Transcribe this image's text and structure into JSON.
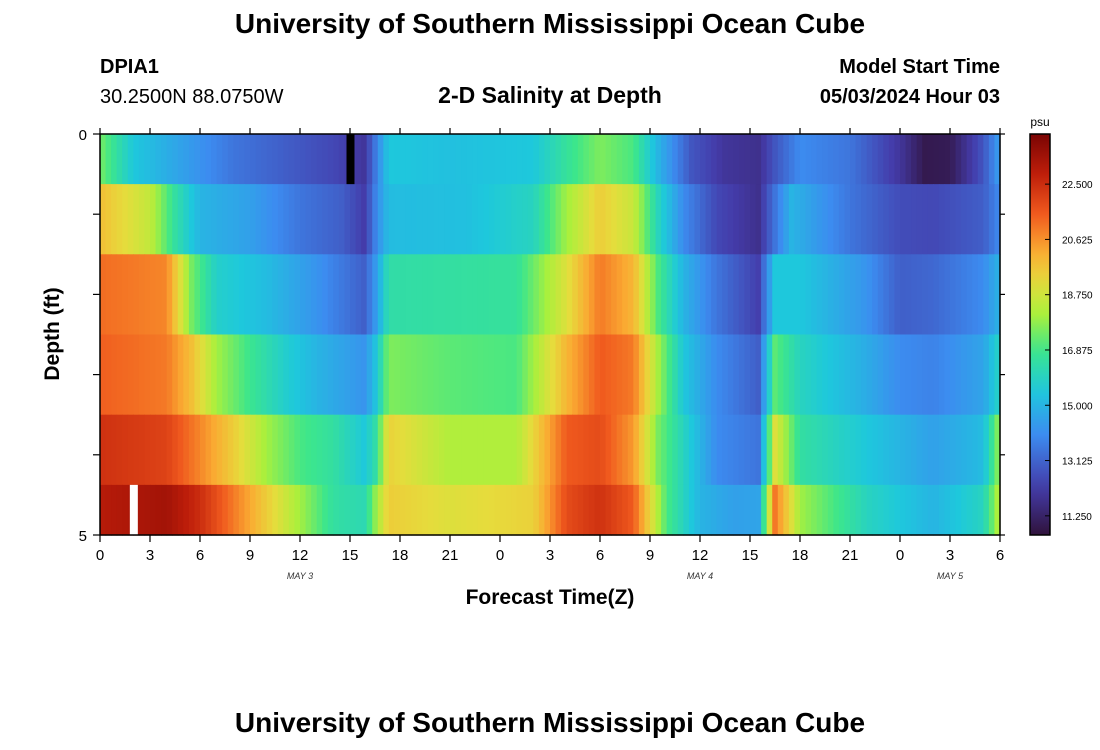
{
  "header": {
    "title": "University of Southern Mississippi Ocean Cube",
    "station_id": "DPIA1",
    "coordinates": "30.2500N  88.0750W",
    "subtitle": "2-D Salinity at Depth",
    "model_start_label": "Model Start Time",
    "model_start_value": "05/03/2024 Hour 03"
  },
  "footer": {
    "title": "University of Southern Mississippi Ocean Cube"
  },
  "chart_data": {
    "type": "heatmap",
    "title": "2-D Salinity at Depth",
    "xlabel": "Forecast Time(Z)",
    "ylabel": "Depth (ft)",
    "x_tick_labels": [
      "0",
      "3",
      "6",
      "9",
      "12",
      "15",
      "18",
      "21",
      "0",
      "3",
      "6",
      "9",
      "12",
      "15",
      "18",
      "21",
      "0",
      "3",
      "6"
    ],
    "x_range_hours": [
      0,
      54
    ],
    "y_tick_labels": [
      "0",
      "5"
    ],
    "y_range": [
      0,
      5
    ],
    "day_labels": [
      {
        "text": "MAY 3",
        "hour": 12
      },
      {
        "text": "MAY 4",
        "hour": 36
      },
      {
        "text": "MAY 5",
        "hour": 51
      }
    ],
    "colorbar": {
      "unit": "psu",
      "min": 10.6,
      "max": 24.2,
      "ticks": [
        "11.250",
        "13.125",
        "15.000",
        "16.875",
        "18.750",
        "20.625",
        "22.500"
      ],
      "tick_values": [
        11.25,
        13.125,
        15.0,
        16.875,
        18.75,
        20.625,
        22.5
      ]
    },
    "depth_layers": [
      {
        "depth": 0.25,
        "knots": [
          [
            0,
            17.5
          ],
          [
            2,
            15.5
          ],
          [
            5,
            14.5
          ],
          [
            8,
            13.5
          ],
          [
            11,
            13.0
          ],
          [
            14,
            12.5
          ],
          [
            15.9,
            12.0
          ],
          [
            16.6,
            13.8
          ],
          [
            17.3,
            15.5
          ],
          [
            21,
            15.3
          ],
          [
            26,
            15.5
          ],
          [
            28,
            16.6
          ],
          [
            30,
            17.6
          ],
          [
            32,
            17.0
          ],
          [
            33.5,
            15.0
          ],
          [
            35.5,
            12.8
          ],
          [
            37.5,
            12.0
          ],
          [
            39.5,
            11.8
          ],
          [
            40.5,
            12.8
          ],
          [
            42,
            14.0
          ],
          [
            45,
            13.5
          ],
          [
            48,
            12.0
          ],
          [
            49.5,
            10.9
          ],
          [
            51,
            11.0
          ],
          [
            53,
            12.8
          ],
          [
            54,
            14.5
          ]
        ]
      },
      {
        "depth": 1.0,
        "knots": [
          [
            0,
            19.8
          ],
          [
            3,
            18.5
          ],
          [
            4.5,
            16.5
          ],
          [
            6,
            15.0
          ],
          [
            9,
            14.5
          ],
          [
            12,
            13.5
          ],
          [
            14.5,
            13.0
          ],
          [
            15.9,
            12.2
          ],
          [
            16.6,
            14.0
          ],
          [
            17.3,
            15.2
          ],
          [
            22,
            15.3
          ],
          [
            26,
            16.0
          ],
          [
            28,
            18.0
          ],
          [
            30,
            19.5
          ],
          [
            32,
            18.6
          ],
          [
            33.5,
            16.0
          ],
          [
            35,
            14.0
          ],
          [
            37,
            12.5
          ],
          [
            39.5,
            11.8
          ],
          [
            40.5,
            13.5
          ],
          [
            41.5,
            15.0
          ],
          [
            45,
            13.5
          ],
          [
            48,
            12.6
          ],
          [
            50,
            12.5
          ],
          [
            53,
            13.0
          ],
          [
            54,
            14.0
          ]
        ]
      },
      {
        "depth": 2.0,
        "knots": [
          [
            0,
            21.2
          ],
          [
            4,
            20.8
          ],
          [
            5.5,
            17.5
          ],
          [
            7,
            15.8
          ],
          [
            10,
            15.2
          ],
          [
            13,
            14.2
          ],
          [
            15.9,
            13.0
          ],
          [
            16.6,
            14.5
          ],
          [
            17.3,
            16.4
          ],
          [
            21,
            16.5
          ],
          [
            25,
            16.6
          ],
          [
            28,
            19.0
          ],
          [
            30,
            21.0
          ],
          [
            32,
            20.0
          ],
          [
            33.5,
            17.0
          ],
          [
            35,
            15.0
          ],
          [
            37,
            13.5
          ],
          [
            39.5,
            12.3
          ],
          [
            40.5,
            15.5
          ],
          [
            42,
            15.5
          ],
          [
            46,
            14.2
          ],
          [
            48,
            13.0
          ],
          [
            50,
            13.2
          ],
          [
            53,
            14.0
          ],
          [
            54,
            15.0
          ]
        ]
      },
      {
        "depth": 3.0,
        "knots": [
          [
            0,
            21.4
          ],
          [
            4,
            21.0
          ],
          [
            5.5,
            19.8
          ],
          [
            7,
            18.0
          ],
          [
            9,
            16.8
          ],
          [
            11,
            15.8
          ],
          [
            13,
            15.0
          ],
          [
            15.9,
            14.2
          ],
          [
            16.6,
            15.5
          ],
          [
            17.3,
            17.6
          ],
          [
            21,
            17.2
          ],
          [
            25,
            17.0
          ],
          [
            28,
            20.0
          ],
          [
            30,
            21.5
          ],
          [
            32,
            21.0
          ],
          [
            33.5,
            18.0
          ],
          [
            35,
            15.5
          ],
          [
            37,
            14.0
          ],
          [
            39.5,
            13.0
          ],
          [
            40.5,
            17.2
          ],
          [
            42,
            16.0
          ],
          [
            46,
            14.8
          ],
          [
            48,
            14.0
          ],
          [
            50,
            13.8
          ],
          [
            53,
            14.6
          ],
          [
            54,
            16.0
          ]
        ]
      },
      {
        "depth": 4.0,
        "knots": [
          [
            0,
            22.4
          ],
          [
            4,
            22.0
          ],
          [
            6,
            20.8
          ],
          [
            8,
            19.5
          ],
          [
            10,
            18.0
          ],
          [
            12,
            17.0
          ],
          [
            14,
            16.5
          ],
          [
            15.9,
            15.5
          ],
          [
            16.6,
            16.5
          ],
          [
            17.3,
            19.4
          ],
          [
            21,
            18.2
          ],
          [
            25,
            18.2
          ],
          [
            28,
            21.5
          ],
          [
            30,
            21.8
          ],
          [
            32,
            20.5
          ],
          [
            33.5,
            17.5
          ],
          [
            35,
            16.0
          ],
          [
            37,
            14.0
          ],
          [
            39.5,
            13.5
          ],
          [
            40.5,
            19.0
          ],
          [
            42,
            16.5
          ],
          [
            46,
            15.5
          ],
          [
            48,
            15.0
          ],
          [
            50,
            14.5
          ],
          [
            53,
            15.2
          ],
          [
            54,
            18.0
          ]
        ]
      },
      {
        "depth": 4.75,
        "knots": [
          [
            0,
            23.0
          ],
          [
            4,
            23.4
          ],
          [
            6,
            22.5
          ],
          [
            8,
            21.0
          ],
          [
            10,
            19.5
          ],
          [
            12,
            18.0
          ],
          [
            14,
            16.5
          ],
          [
            15.9,
            16.2
          ],
          [
            16.6,
            18.0
          ],
          [
            17.3,
            19.5
          ],
          [
            21,
            19.0
          ],
          [
            26,
            19.4
          ],
          [
            28,
            21.8
          ],
          [
            30,
            22.4
          ],
          [
            32,
            21.5
          ],
          [
            34,
            17.0
          ],
          [
            36,
            15.0
          ],
          [
            38,
            14.5
          ],
          [
            39.5,
            14.6
          ],
          [
            40.5,
            21.0
          ],
          [
            42,
            18.0
          ],
          [
            46,
            16.0
          ],
          [
            48,
            15.5
          ],
          [
            50,
            15.0
          ],
          [
            53,
            16.0
          ],
          [
            54,
            18.5
          ]
        ]
      }
    ],
    "missing_markers": [
      {
        "hour": 15.0,
        "depth_layer_index": 0,
        "color": "#000000"
      },
      {
        "hour": 2.0,
        "depth_layer_index": 5,
        "color": "#ffffff"
      }
    ]
  }
}
